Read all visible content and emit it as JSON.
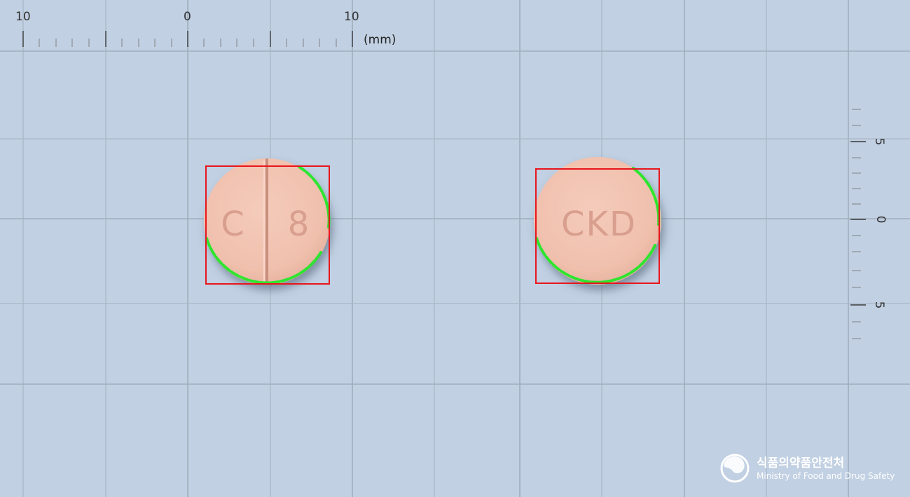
{
  "ruler_top": {
    "labels": [
      "10",
      "0",
      "10"
    ],
    "unit": "(mm)"
  },
  "ruler_right": {
    "labels": [
      "5",
      "0",
      "5"
    ]
  },
  "tablets": [
    {
      "name": "tablet-front",
      "imprint_left": "C",
      "imprint_right": "8",
      "score_line": true
    },
    {
      "name": "tablet-back",
      "imprint": "CKD"
    }
  ],
  "colors": {
    "background": "#c1d0e2",
    "tablet": "#f2c6b4",
    "bounding_box": "#e8161c",
    "contour": "#2ee52e"
  },
  "logo": {
    "korean": "식품의약품안전처",
    "english": "Ministry of Food and Drug Safety"
  }
}
